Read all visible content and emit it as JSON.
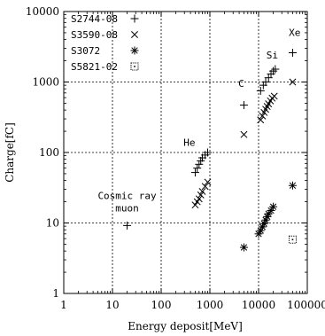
{
  "chart_data": {
    "type": "scatter",
    "xlabel": "Energy deposit[MeV]",
    "ylabel": "Charge[fC]",
    "xscale": "log",
    "yscale": "log",
    "xlim": [
      1,
      100000
    ],
    "ylim": [
      1,
      10000
    ],
    "grid": true,
    "legend": "top-left",
    "xticks": [
      1,
      10,
      100,
      1000,
      10000,
      100000
    ],
    "xtick_labels": [
      "1",
      "10",
      "100",
      "1000",
      "10000",
      "100000"
    ],
    "yticks": [
      1,
      10,
      100,
      1000,
      10000
    ],
    "ytick_labels": [
      "1",
      "10",
      "100",
      "1000",
      "10000"
    ],
    "annotations": [
      {
        "id": "cosmic",
        "lines": [
          "Cosmic ray",
          "muon"
        ],
        "x": 20,
        "y": 22
      },
      {
        "id": "he",
        "lines": [
          "He"
        ],
        "x": 380,
        "y": 125
      },
      {
        "id": "c",
        "lines": [
          "C"
        ],
        "x": 4400,
        "y": 850
      },
      {
        "id": "si",
        "lines": [
          "Si"
        ],
        "x": 19000,
        "y": 2150
      },
      {
        "id": "xe",
        "lines": [
          "Xe"
        ],
        "x": 55000,
        "y": 4500
      }
    ],
    "series": [
      {
        "name": "S2744-08",
        "marker": "plus",
        "points": [
          [
            20,
            9.2
          ],
          [
            500,
            52
          ],
          [
            550,
            60
          ],
          [
            600,
            68
          ],
          [
            650,
            76
          ],
          [
            700,
            84
          ],
          [
            800,
            92
          ],
          [
            900,
            100
          ],
          [
            5000,
            470
          ],
          [
            11000,
            750
          ],
          [
            12500,
            900
          ],
          [
            14000,
            1000
          ],
          [
            16000,
            1150
          ],
          [
            18000,
            1300
          ],
          [
            20000,
            1430
          ],
          [
            22000,
            1520
          ],
          [
            50000,
            2600
          ]
        ]
      },
      {
        "name": "S3590-08",
        "marker": "x",
        "points": [
          [
            500,
            18
          ],
          [
            550,
            20
          ],
          [
            600,
            22
          ],
          [
            650,
            25
          ],
          [
            700,
            28
          ],
          [
            800,
            33
          ],
          [
            900,
            38
          ],
          [
            5000,
            180
          ],
          [
            11000,
            290
          ],
          [
            12000,
            330
          ],
          [
            13000,
            370
          ],
          [
            14000,
            410
          ],
          [
            15000,
            450
          ],
          [
            16000,
            490
          ],
          [
            17500,
            540
          ],
          [
            19000,
            590
          ],
          [
            21000,
            630
          ],
          [
            50000,
            1000
          ]
        ]
      },
      {
        "name": "S3072",
        "marker": "star",
        "points": [
          [
            5000,
            4.5
          ],
          [
            10000,
            7
          ],
          [
            11000,
            7.8
          ],
          [
            12000,
            8.8
          ],
          [
            13000,
            9.8
          ],
          [
            14000,
            11
          ],
          [
            15000,
            12.3
          ],
          [
            16000,
            13.5
          ],
          [
            18000,
            15
          ],
          [
            20000,
            17
          ],
          [
            50000,
            34
          ]
        ]
      },
      {
        "name": "S5821-02",
        "marker": "dotted-square",
        "points": [
          [
            50000,
            5.8
          ]
        ]
      }
    ]
  }
}
